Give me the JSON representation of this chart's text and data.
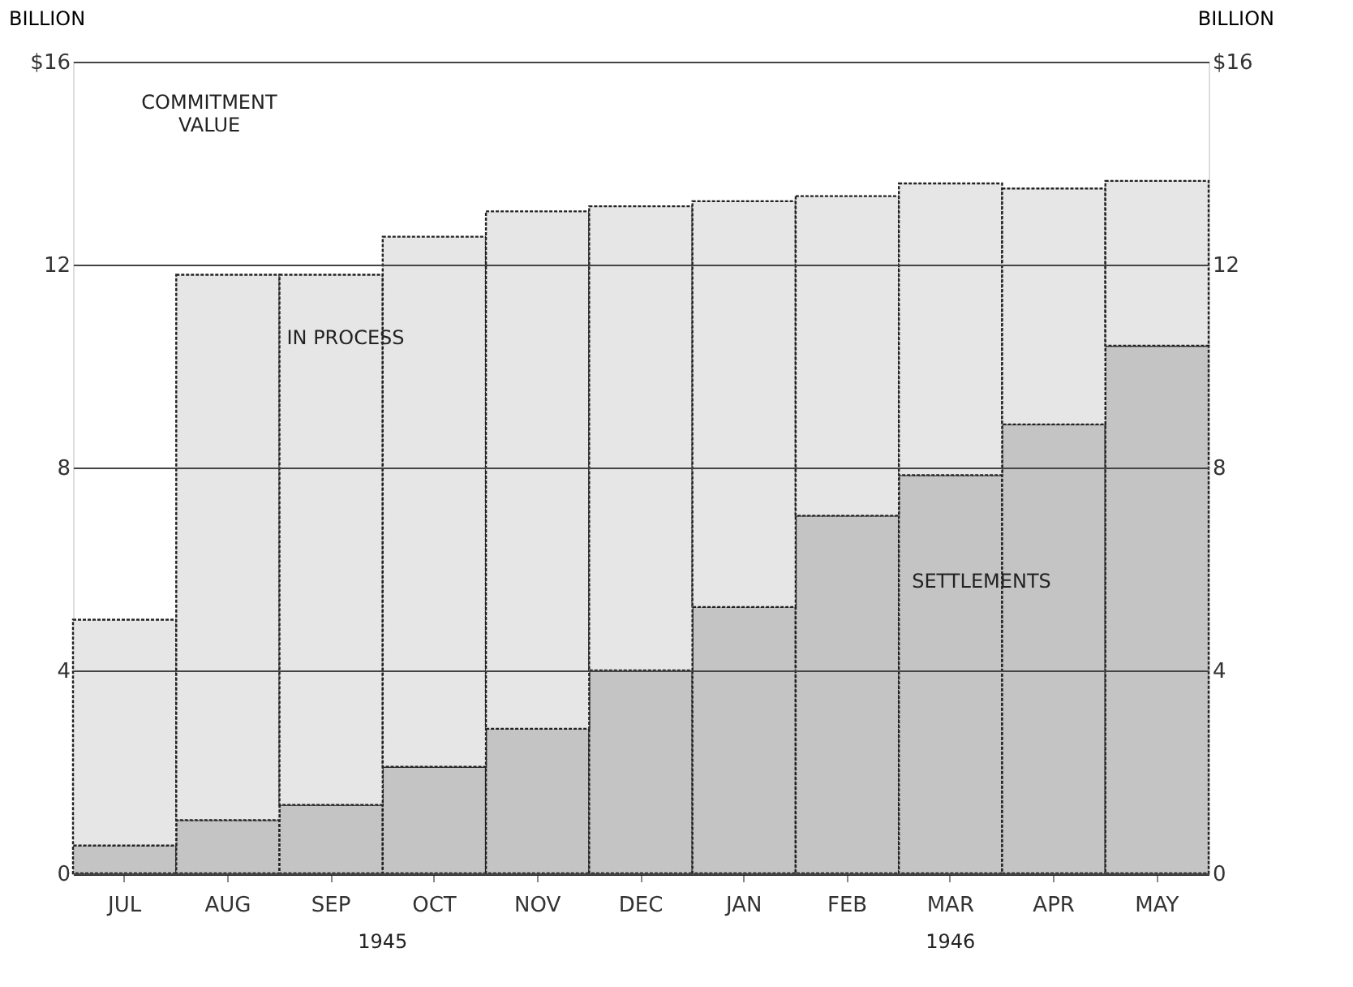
{
  "chart_data": {
    "type": "bar",
    "stacked": true,
    "categories": [
      "JUL",
      "AUG",
      "SEP",
      "OCT",
      "NOV",
      "DEC",
      "JAN",
      "FEB",
      "MAR",
      "APR",
      "MAY"
    ],
    "series": [
      {
        "name": "SETTLEMENTS",
        "color": "#c4c4c4",
        "values": [
          0.55,
          1.05,
          1.35,
          2.1,
          2.85,
          4.0,
          5.25,
          7.05,
          7.85,
          8.85,
          10.4
        ]
      },
      {
        "name": "IN PROCESS",
        "color": "#e6e6e6",
        "values": [
          4.45,
          10.75,
          10.45,
          10.45,
          10.2,
          9.15,
          8.0,
          6.3,
          5.75,
          4.65,
          3.25
        ]
      }
    ],
    "ylabel": "BILLION",
    "y2label": "BILLION",
    "ylim": [
      0,
      16
    ],
    "yticks": [
      0,
      4,
      8,
      12,
      {
        "value": 16,
        "label": "$16"
      }
    ],
    "y2lim": [
      0,
      16
    ],
    "y2ticks": [
      0,
      4,
      8,
      12,
      {
        "value": 16,
        "label": "$16"
      }
    ],
    "grid": "y",
    "legend": false,
    "annotations": [
      "COMMITMENT VALUE",
      "1945",
      "1946"
    ]
  }
}
